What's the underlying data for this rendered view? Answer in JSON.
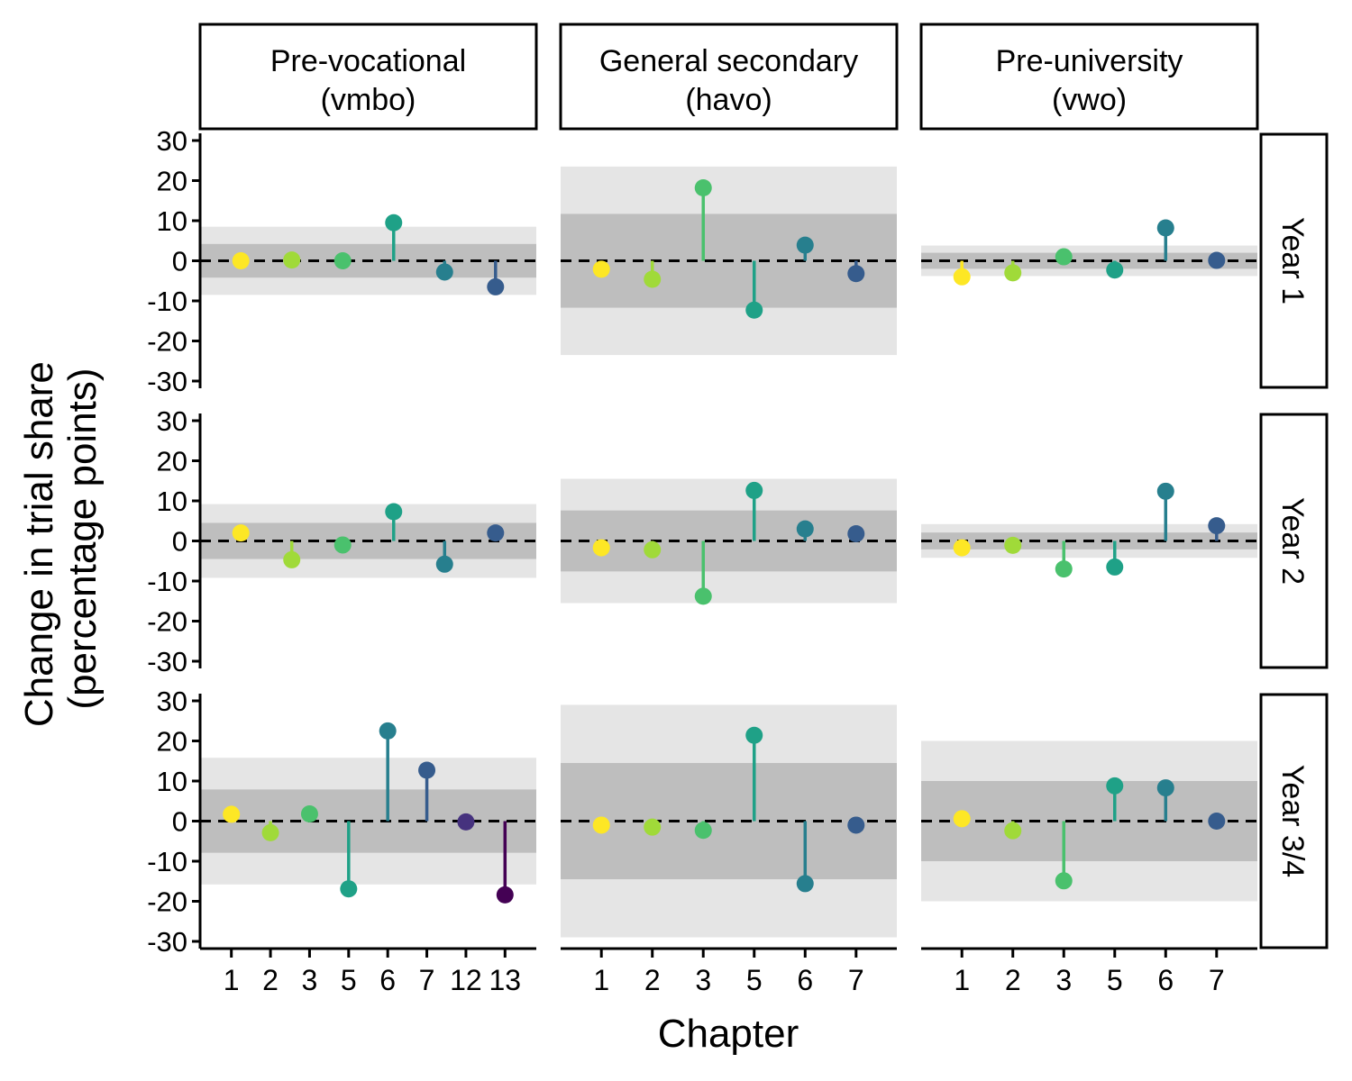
{
  "chart_data": {
    "type": "lollipop-facet",
    "xlabel": "Chapter",
    "ylabel": "Change in trial share\n(percentage points)",
    "ylim": [
      -30,
      30
    ],
    "yticks": [
      30,
      20,
      10,
      0,
      -10,
      -20,
      -30
    ],
    "columns": [
      "Pre-vocational\n(vmbo)",
      "General secondary\n(havo)",
      "Pre-university\n(vwo)"
    ],
    "rows": [
      "Year 1",
      "Year 2",
      "Year 3/4"
    ],
    "chapter_colors": {
      "1": "#FDE725",
      "2": "#A0DA39",
      "3": "#4AC16D",
      "5": "#1FA187",
      "6": "#277F8E",
      "7": "#365C8D",
      "12": "#46327E",
      "13": "#440154"
    },
    "band_inner_color": "#BEBEBE",
    "band_outer_color": "#E5E5E5",
    "panels": [
      {
        "row": 0,
        "col": 0,
        "chapters": [
          "1",
          "2",
          "3",
          "5",
          "6",
          "7"
        ],
        "values": [
          0,
          0.2,
          0,
          9.5,
          -2.8,
          -6.5
        ],
        "band_inner": 4.2,
        "band_outer": 8.5
      },
      {
        "row": 0,
        "col": 1,
        "chapters": [
          "1",
          "2",
          "3",
          "5",
          "6",
          "7"
        ],
        "values": [
          -2.1,
          -4.6,
          18.2,
          -12.3,
          3.9,
          -3.2
        ],
        "band_inner": 11.7,
        "band_outer": 23.5
      },
      {
        "row": 0,
        "col": 2,
        "chapters": [
          "1",
          "2",
          "3",
          "5",
          "6",
          "7"
        ],
        "values": [
          -4.0,
          -3.0,
          1.0,
          -2.3,
          8.2,
          0.1
        ],
        "band_inner": 2.0,
        "band_outer": 3.8
      },
      {
        "row": 1,
        "col": 0,
        "chapters": [
          "1",
          "2",
          "3",
          "5",
          "6",
          "7"
        ],
        "values": [
          2.0,
          -4.7,
          -1.0,
          7.3,
          -5.8,
          2.0
        ],
        "band_inner": 4.5,
        "band_outer": 9.2
      },
      {
        "row": 1,
        "col": 1,
        "chapters": [
          "1",
          "2",
          "3",
          "5",
          "6",
          "7"
        ],
        "values": [
          -1.7,
          -2.2,
          -13.8,
          12.6,
          3.0,
          1.8
        ],
        "band_inner": 7.6,
        "band_outer": 15.5
      },
      {
        "row": 1,
        "col": 2,
        "chapters": [
          "1",
          "2",
          "3",
          "5",
          "6",
          "7"
        ],
        "values": [
          -1.7,
          -1.1,
          -7.0,
          -6.5,
          12.4,
          3.8
        ],
        "band_inner": 2.1,
        "band_outer": 4.2
      },
      {
        "row": 2,
        "col": 0,
        "chapters": [
          "1",
          "2",
          "3",
          "5",
          "6",
          "7",
          "12",
          "13"
        ],
        "values": [
          1.7,
          -2.9,
          1.8,
          -16.9,
          22.5,
          12.7,
          -0.2,
          -18.4
        ],
        "band_inner": 7.9,
        "band_outer": 15.8
      },
      {
        "row": 2,
        "col": 1,
        "chapters": [
          "1",
          "2",
          "3",
          "5",
          "6",
          "7"
        ],
        "values": [
          -1.0,
          -1.5,
          -2.3,
          21.4,
          -15.6,
          -1.0
        ],
        "band_inner": 14.5,
        "band_outer": 29.0
      },
      {
        "row": 2,
        "col": 2,
        "chapters": [
          "1",
          "2",
          "3",
          "5",
          "6",
          "7"
        ],
        "values": [
          0.6,
          -2.4,
          -14.9,
          8.8,
          8.3,
          0.0
        ],
        "band_inner": 10.0,
        "band_outer": 20.0
      }
    ]
  }
}
